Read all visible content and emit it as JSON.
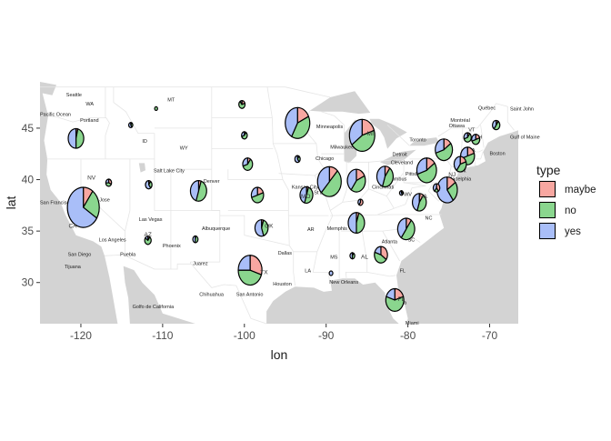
{
  "chart_data": {
    "type": "map-pie",
    "xlabel": "lon",
    "ylabel": "lat",
    "xlim": [
      -125,
      -66.5
    ],
    "ylim": [
      26,
      49.5
    ],
    "x_ticks": [
      -120,
      -110,
      -100,
      -90,
      -80,
      -70
    ],
    "x_tick_labels": [
      "-120",
      "-110",
      "-100",
      "-90",
      "-80",
      "-70"
    ],
    "y_ticks": [
      30,
      35,
      40,
      45
    ],
    "y_tick_labels": [
      "30",
      "35",
      "40",
      "45"
    ],
    "legend": {
      "title": "type",
      "placement": "right",
      "entries": [
        {
          "label": "maybe",
          "color": "#F8A7A1"
        },
        {
          "label": "no",
          "color": "#8AD68E"
        },
        {
          "label": "yes",
          "color": "#A9BEF8"
        }
      ]
    },
    "colors": {
      "maybe": "#F8A7A1",
      "no": "#8AD68E",
      "yes": "#A9BEF8",
      "land": "#FFFFFF",
      "water": "#D3D3D3",
      "border": "#E5E5E5"
    },
    "pies": [
      {
        "lon": -119.7,
        "lat": 37.3,
        "r": 1.95,
        "maybe": 0.1,
        "no": 0.24,
        "yes": 0.66
      },
      {
        "lon": -120.6,
        "lat": 44.0,
        "r": 0.95,
        "maybe": 0.04,
        "no": 0.46,
        "yes": 0.5
      },
      {
        "lon": -113.9,
        "lat": 45.3,
        "r": 0.25,
        "maybe": 0.1,
        "no": 0.3,
        "yes": 0.6
      },
      {
        "lon": -110.8,
        "lat": 46.9,
        "r": 0.18,
        "maybe": 0.0,
        "no": 1.0,
        "yes": 0.0
      },
      {
        "lon": -116.6,
        "lat": 39.7,
        "r": 0.35,
        "maybe": 0.32,
        "no": 0.42,
        "yes": 0.26
      },
      {
        "lon": -111.7,
        "lat": 39.5,
        "r": 0.4,
        "maybe": 0.1,
        "no": 0.3,
        "yes": 0.6
      },
      {
        "lon": -111.8,
        "lat": 34.1,
        "r": 0.4,
        "maybe": 0.1,
        "no": 0.75,
        "yes": 0.15
      },
      {
        "lon": -105.6,
        "lat": 38.9,
        "r": 1.0,
        "maybe": 0.05,
        "no": 0.5,
        "yes": 0.45
      },
      {
        "lon": -106.0,
        "lat": 34.2,
        "r": 0.33,
        "maybe": 0.05,
        "no": 0.45,
        "yes": 0.5
      },
      {
        "lon": -100.3,
        "lat": 47.3,
        "r": 0.38,
        "maybe": 0.2,
        "no": 0.7,
        "yes": 0.1
      },
      {
        "lon": -100.0,
        "lat": 44.3,
        "r": 0.35,
        "maybe": 0.1,
        "no": 0.6,
        "yes": 0.3
      },
      {
        "lon": -99.6,
        "lat": 41.5,
        "r": 0.6,
        "maybe": 0.1,
        "no": 0.6,
        "yes": 0.3
      },
      {
        "lon": -98.4,
        "lat": 38.5,
        "r": 0.75,
        "maybe": 0.2,
        "no": 0.5,
        "yes": 0.3
      },
      {
        "lon": -97.9,
        "lat": 35.3,
        "r": 0.8,
        "maybe": 0.05,
        "no": 0.4,
        "yes": 0.55
      },
      {
        "lon": -99.3,
        "lat": 31.2,
        "r": 1.45,
        "maybe": 0.3,
        "no": 0.45,
        "yes": 0.25
      },
      {
        "lon": -93.5,
        "lat": 45.5,
        "r": 1.5,
        "maybe": 0.18,
        "no": 0.4,
        "yes": 0.42
      },
      {
        "lon": -93.5,
        "lat": 42.0,
        "r": 0.33,
        "maybe": 0.1,
        "no": 0.3,
        "yes": 0.6
      },
      {
        "lon": -92.4,
        "lat": 38.5,
        "r": 0.8,
        "maybe": 0.05,
        "no": 0.5,
        "yes": 0.45
      },
      {
        "lon": -89.6,
        "lat": 39.8,
        "r": 1.45,
        "maybe": 0.12,
        "no": 0.5,
        "yes": 0.38
      },
      {
        "lon": -86.3,
        "lat": 39.9,
        "r": 1.1,
        "maybe": 0.18,
        "no": 0.42,
        "yes": 0.4
      },
      {
        "lon": -85.6,
        "lat": 44.3,
        "r": 1.55,
        "maybe": 0.2,
        "no": 0.45,
        "yes": 0.35
      },
      {
        "lon": -82.8,
        "lat": 40.3,
        "r": 1.0,
        "maybe": 0.1,
        "no": 0.45,
        "yes": 0.45
      },
      {
        "lon": -85.8,
        "lat": 37.8,
        "r": 0.3,
        "maybe": 0.6,
        "no": 0.0,
        "yes": 0.4
      },
      {
        "lon": -86.3,
        "lat": 35.8,
        "r": 1.0,
        "maybe": 0.05,
        "no": 0.45,
        "yes": 0.5
      },
      {
        "lon": -89.4,
        "lat": 30.9,
        "r": 0.22,
        "maybe": 0.0,
        "no": 0.0,
        "yes": 1.0
      },
      {
        "lon": -86.8,
        "lat": 32.6,
        "r": 0.3,
        "maybe": 0.1,
        "no": 0.4,
        "yes": 0.5
      },
      {
        "lon": -83.3,
        "lat": 32.7,
        "r": 0.8,
        "maybe": 0.35,
        "no": 0.45,
        "yes": 0.2
      },
      {
        "lon": -81.6,
        "lat": 28.3,
        "r": 1.1,
        "maybe": 0.2,
        "no": 0.6,
        "yes": 0.2
      },
      {
        "lon": -80.2,
        "lat": 35.2,
        "r": 1.05,
        "maybe": 0.1,
        "no": 0.5,
        "yes": 0.4
      },
      {
        "lon": -80.8,
        "lat": 38.7,
        "r": 0.22,
        "maybe": 0.2,
        "no": 0.2,
        "yes": 0.6
      },
      {
        "lon": -78.6,
        "lat": 37.8,
        "r": 0.85,
        "maybe": 0.1,
        "no": 0.45,
        "yes": 0.45
      },
      {
        "lon": -77.7,
        "lat": 40.9,
        "r": 1.2,
        "maybe": 0.15,
        "no": 0.55,
        "yes": 0.3
      },
      {
        "lon": -75.6,
        "lat": 42.9,
        "r": 1.05,
        "maybe": 0.15,
        "no": 0.55,
        "yes": 0.3
      },
      {
        "lon": -76.5,
        "lat": 39.2,
        "r": 0.4,
        "maybe": 0.4,
        "no": 0.2,
        "yes": 0.4
      },
      {
        "lon": -75.2,
        "lat": 39.0,
        "r": 1.25,
        "maybe": 0.15,
        "no": 0.25,
        "yes": 0.6
      },
      {
        "lon": -73.6,
        "lat": 41.5,
        "r": 0.75,
        "maybe": 0.2,
        "no": 0.4,
        "yes": 0.4
      },
      {
        "lon": -72.7,
        "lat": 42.3,
        "r": 0.85,
        "maybe": 0.2,
        "no": 0.5,
        "yes": 0.3
      },
      {
        "lon": -71.7,
        "lat": 43.9,
        "r": 0.5,
        "maybe": 0.2,
        "no": 0.5,
        "yes": 0.3
      },
      {
        "lon": -72.7,
        "lat": 44.1,
        "r": 0.45,
        "maybe": 0.1,
        "no": 0.6,
        "yes": 0.3
      },
      {
        "lon": -69.2,
        "lat": 45.3,
        "r": 0.45,
        "maybe": 0.1,
        "no": 0.5,
        "yes": 0.4
      }
    ],
    "pie_state_labels": [
      {
        "lon": -118.7,
        "lat": 40.0,
        "text": "NV"
      },
      {
        "lon": -121.0,
        "lat": 35.3,
        "text": "CA"
      },
      {
        "lon": -111.8,
        "lat": 34.5,
        "text": "AZ"
      },
      {
        "lon": -97.0,
        "lat": 35.3,
        "text": "OK"
      },
      {
        "lon": -97.6,
        "lat": 30.8,
        "text": "TX"
      },
      {
        "lon": -92.5,
        "lat": 38.2,
        "text": "MO"
      },
      {
        "lon": -84.6,
        "lat": 44.3,
        "text": "MI"
      },
      {
        "lon": -85.3,
        "lat": 32.3,
        "text": "AL"
      },
      {
        "lon": -78.1,
        "lat": 38.2,
        "text": "VA"
      },
      {
        "lon": -74.6,
        "lat": 40.3,
        "text": "NJ"
      },
      {
        "lon": -80.8,
        "lat": 28.2,
        "text": "FL"
      }
    ],
    "map_labels": [
      {
        "lon": -119.4,
        "lat": 47.2,
        "text": "WA"
      },
      {
        "lon": -120.1,
        "lat": 45.6,
        "text": "Portland"
      },
      {
        "lon": -121.8,
        "lat": 48.1,
        "text": "Seattle"
      },
      {
        "lon": -112.5,
        "lat": 43.6,
        "text": "ID"
      },
      {
        "lon": -109.4,
        "lat": 47.6,
        "text": "MT"
      },
      {
        "lon": -107.9,
        "lat": 42.9,
        "text": "WY"
      },
      {
        "lon": -111.1,
        "lat": 40.7,
        "text": "Salt Lake City"
      },
      {
        "lon": -105.0,
        "lat": 39.7,
        "text": "Denver"
      },
      {
        "lon": -112.9,
        "lat": 36.0,
        "text": "Las Vegas"
      },
      {
        "lon": -117.8,
        "lat": 34.0,
        "text": "Los Angeles"
      },
      {
        "lon": -121.6,
        "lat": 32.6,
        "text": "San Diego"
      },
      {
        "lon": -115.2,
        "lat": 32.6,
        "text": "Puebla"
      },
      {
        "lon": -122.0,
        "lat": 31.4,
        "text": "Tijuana"
      },
      {
        "lon": -110.0,
        "lat": 33.4,
        "text": "Phoenix"
      },
      {
        "lon": -105.2,
        "lat": 35.1,
        "text": "Albuquerque"
      },
      {
        "lon": -106.3,
        "lat": 31.7,
        "text": "Juarez"
      },
      {
        "lon": -105.5,
        "lat": 28.7,
        "text": "Chihuahua"
      },
      {
        "lon": -95.9,
        "lat": 32.7,
        "text": "Dallas"
      },
      {
        "lon": -96.5,
        "lat": 29.7,
        "text": "Houston"
      },
      {
        "lon": -101.0,
        "lat": 28.7,
        "text": "San Antonio"
      },
      {
        "lon": -94.2,
        "lat": 39.1,
        "text": "Kansas City"
      },
      {
        "lon": -91.5,
        "lat": 38.6,
        "text": "St Louis"
      },
      {
        "lon": -91.3,
        "lat": 41.9,
        "text": "Chicago"
      },
      {
        "lon": -89.5,
        "lat": 43.0,
        "text": "Milwaukee"
      },
      {
        "lon": -91.2,
        "lat": 45.0,
        "text": "Minneapolis"
      },
      {
        "lon": -92.3,
        "lat": 35.0,
        "text": "AR"
      },
      {
        "lon": -89.9,
        "lat": 35.1,
        "text": "Memphis"
      },
      {
        "lon": -89.5,
        "lat": 32.3,
        "text": "MS"
      },
      {
        "lon": -92.6,
        "lat": 31.0,
        "text": "LA"
      },
      {
        "lon": -89.6,
        "lat": 29.9,
        "text": "New Orleans"
      },
      {
        "lon": -83.2,
        "lat": 33.8,
        "text": "Atlanta"
      },
      {
        "lon": -81.9,
        "lat": 42.3,
        "text": "Detroit"
      },
      {
        "lon": -82.1,
        "lat": 41.5,
        "text": "Cleveland"
      },
      {
        "lon": -82.9,
        "lat": 39.9,
        "text": "Columbus"
      },
      {
        "lon": -84.4,
        "lat": 39.1,
        "text": "Cincinnati"
      },
      {
        "lon": -80.3,
        "lat": 40.4,
        "text": "Pittsburgh"
      },
      {
        "lon": -80.5,
        "lat": 38.4,
        "text": "WV"
      },
      {
        "lon": -79.8,
        "lat": 43.7,
        "text": "Toronto"
      },
      {
        "lon": -75.0,
        "lat": 45.1,
        "text": "Ottawa"
      },
      {
        "lon": -74.8,
        "lat": 45.6,
        "text": "Montréal"
      },
      {
        "lon": -71.4,
        "lat": 46.8,
        "text": "Québec"
      },
      {
        "lon": -75.8,
        "lat": 42.9,
        "text": "NY"
      },
      {
        "lon": -74.1,
        "lat": 40.7,
        "text": "York"
      },
      {
        "lon": -75.6,
        "lat": 39.9,
        "text": "Philadelphia"
      },
      {
        "lon": -70.0,
        "lat": 42.4,
        "text": "Boston"
      },
      {
        "lon": -72.6,
        "lat": 44.7,
        "text": "VT"
      },
      {
        "lon": -71.8,
        "lat": 44.0,
        "text": "NH"
      },
      {
        "lon": -72.7,
        "lat": 42.7,
        "text": "MA"
      },
      {
        "lon": -77.9,
        "lat": 36.1,
        "text": "NC"
      },
      {
        "lon": -80.0,
        "lat": 34.0,
        "text": "SC"
      },
      {
        "lon": -82.0,
        "lat": 27.9,
        "text": "Tampa"
      },
      {
        "lon": -81.0,
        "lat": 31.0,
        "text": "FL"
      },
      {
        "lon": -80.3,
        "lat": 25.9,
        "text": "Miami"
      },
      {
        "lon": -125.0,
        "lat": 46.2,
        "text": "Pacific Ocean"
      },
      {
        "lon": -125.0,
        "lat": 37.6,
        "text": "San Francisco"
      },
      {
        "lon": -119.0,
        "lat": 37.9,
        "text": "San Jose"
      },
      {
        "lon": -113.7,
        "lat": 27.5,
        "text": "Golfo de California"
      },
      {
        "lon": -67.5,
        "lat": 44.0,
        "text": "Gulf of Maine"
      },
      {
        "lon": -67.5,
        "lat": 46.7,
        "text": "Saint John"
      }
    ]
  }
}
